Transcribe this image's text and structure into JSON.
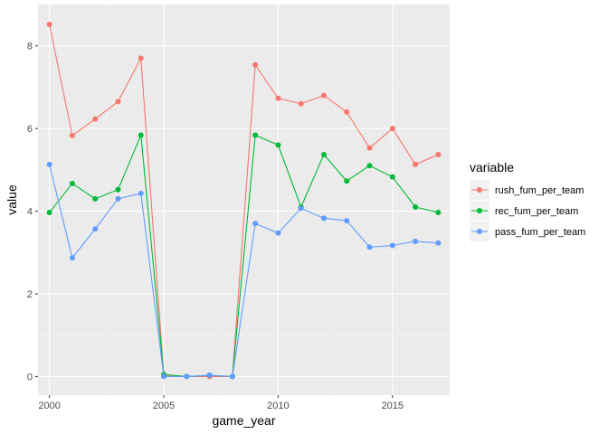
{
  "chart_data": {
    "type": "line",
    "xlabel": "game_year",
    "ylabel": "value",
    "xlim": [
      1999.5,
      2017.5
    ],
    "ylim": [
      -0.45,
      9.0
    ],
    "xticks": [
      2000,
      2005,
      2010,
      2015
    ],
    "yticks": [
      0,
      2,
      4,
      6,
      8
    ],
    "grid": true,
    "legend_title": "variable",
    "legend_position": "right",
    "x": [
      2000,
      2001,
      2002,
      2003,
      2004,
      2005,
      2006,
      2007,
      2008,
      2009,
      2010,
      2011,
      2012,
      2013,
      2014,
      2015,
      2016,
      2017
    ],
    "series": [
      {
        "name": "rush_fum_per_team",
        "color": "#F8766D",
        "values": [
          8.52,
          5.83,
          6.23,
          6.65,
          7.7,
          0.02,
          0.0,
          0.0,
          0.0,
          7.54,
          6.73,
          6.6,
          6.8,
          6.4,
          5.53,
          6.0,
          5.13,
          5.37
        ]
      },
      {
        "name": "rec_fum_per_team",
        "color": "#00BA38",
        "values": [
          3.97,
          4.67,
          4.3,
          4.52,
          5.84,
          0.05,
          0.0,
          0.03,
          0.0,
          5.84,
          5.6,
          4.1,
          5.37,
          4.73,
          5.1,
          4.83,
          4.1,
          3.97
        ]
      },
      {
        "name": "pass_fum_per_team",
        "color": "#619CFF",
        "values": [
          5.13,
          2.87,
          3.57,
          4.3,
          4.43,
          0.0,
          0.0,
          0.03,
          0.0,
          3.7,
          3.47,
          4.07,
          3.83,
          3.77,
          3.13,
          3.17,
          3.27,
          3.23
        ]
      }
    ]
  }
}
